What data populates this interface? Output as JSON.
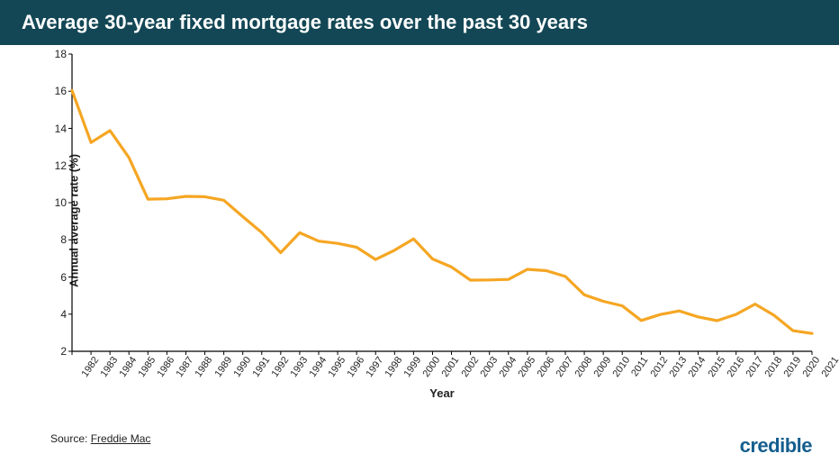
{
  "header": {
    "title": "Average 30-year fixed mortgage rates over the past 30 years"
  },
  "chart": {
    "type": "line",
    "ylabel": "Annual average rate (%)",
    "xlabel": "Year",
    "ylim": [
      2,
      18
    ],
    "yticks": [
      2,
      4,
      6,
      8,
      10,
      12,
      14,
      16,
      18
    ],
    "years": [
      1982,
      1983,
      1984,
      1985,
      1986,
      1987,
      1988,
      1989,
      1990,
      1991,
      1992,
      1993,
      1994,
      1995,
      1996,
      1997,
      1998,
      1999,
      2000,
      2001,
      2002,
      2003,
      2004,
      2005,
      2006,
      2007,
      2008,
      2009,
      2010,
      2011,
      2012,
      2013,
      2014,
      2015,
      2016,
      2017,
      2018,
      2019,
      2020,
      2021
    ],
    "values": [
      16.04,
      13.24,
      13.88,
      12.43,
      10.19,
      10.21,
      10.34,
      10.32,
      10.13,
      9.25,
      8.39,
      7.31,
      8.38,
      7.93,
      7.81,
      7.6,
      6.94,
      7.44,
      8.05,
      6.97,
      6.54,
      5.83,
      5.84,
      5.87,
      6.41,
      6.34,
      6.03,
      5.04,
      4.69,
      4.45,
      3.66,
      3.98,
      4.17,
      3.85,
      3.65,
      3.99,
      4.54,
      3.94,
      3.11,
      2.96
    ],
    "line_color": "#f5a623",
    "line_width": 3.2,
    "axis_color": "#000000",
    "tick_fontsize": 12,
    "label_fontsize": 13,
    "background_color": "#ffffff"
  },
  "source": {
    "prefix": "Source: ",
    "name": "Freddie Mac"
  },
  "brand": {
    "name": "credible"
  }
}
